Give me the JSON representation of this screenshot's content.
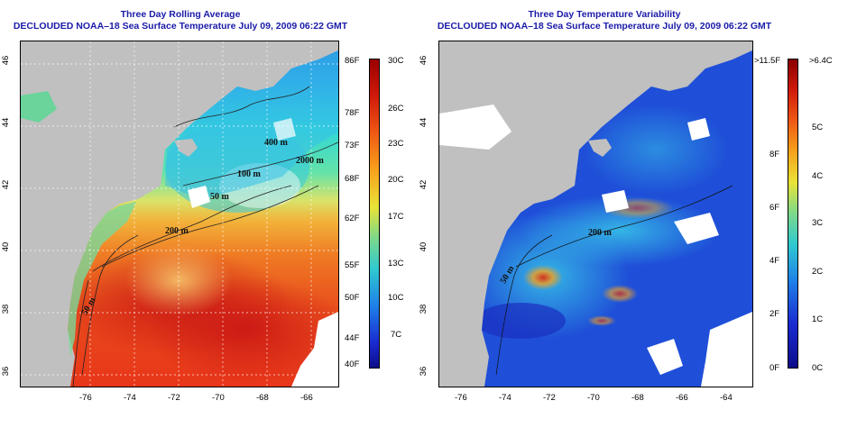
{
  "panels": {
    "left": {
      "title_line1": "Three Day Rolling Average",
      "title_line2": "DECLOUDED NOAA–18 Sea Surface Temperature July 09, 2009 06:22 GMT",
      "colorbar": {
        "left_labels": [
          "86F",
          "78F",
          "73F",
          "68F",
          "62F",
          "55F",
          "50F",
          "44F",
          "40F"
        ],
        "right_labels": [
          "30C",
          "26C",
          "23C",
          "20C",
          "17C",
          "13C",
          "10C",
          "7C"
        ]
      },
      "contours": [
        "400 m",
        "2000 m",
        "100 m",
        "50 m",
        "200 m",
        "50 m"
      ]
    },
    "right": {
      "title_line1": "Three Day Temperature Variability",
      "title_line2": "DECLOUDED NOAA–18 Sea Surface Temperature July 09, 2009 06:22 GMT",
      "colorbar": {
        "left_labels": [
          ">11.5F",
          "8F",
          "6F",
          "4F",
          "2F",
          "0F"
        ],
        "right_labels": [
          ">6.4C",
          "5C",
          "4C",
          "3C",
          "2C",
          "1C",
          "0C"
        ]
      },
      "contours": [
        "200 m",
        "50 m"
      ]
    }
  },
  "axes": {
    "lon_ticks": [
      "-76",
      "-74",
      "-72",
      "-70",
      "-68",
      "-66",
      "-64"
    ],
    "lat_ticks": [
      "46",
      "44",
      "42",
      "40",
      "38",
      "36"
    ]
  },
  "colors": {
    "title": "#1a1aa8",
    "land": "#c0c0c0",
    "cloud": "#ffffff"
  }
}
